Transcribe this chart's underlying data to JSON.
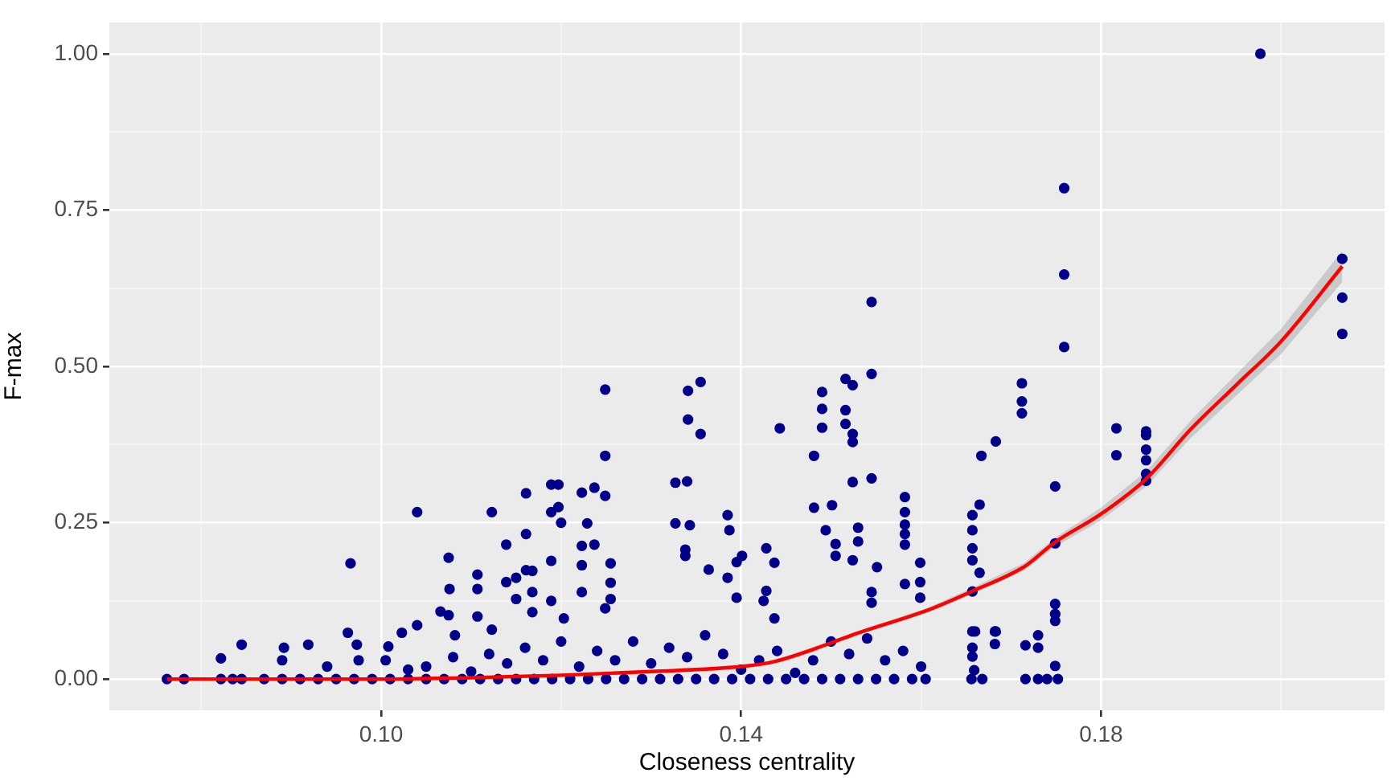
{
  "chart_data": {
    "type": "scatter",
    "xlabel": "Closeness centrality",
    "ylabel": "F-max",
    "xlim": [
      0.0698,
      0.2115
    ],
    "ylim": [
      -0.05,
      1.05
    ],
    "xticks": [
      {
        "value": 0.08,
        "label": null
      },
      {
        "value": 0.1,
        "label": "0.10"
      },
      {
        "value": 0.12,
        "label": null
      },
      {
        "value": 0.14,
        "label": "0.14"
      },
      {
        "value": 0.16,
        "label": null
      },
      {
        "value": 0.18,
        "label": "0.18"
      },
      {
        "value": 0.2,
        "label": null
      }
    ],
    "yticks": [
      {
        "value": 0,
        "label": "0.00"
      },
      {
        "value": 0.125,
        "label": null
      },
      {
        "value": 0.25,
        "label": "0.25"
      },
      {
        "value": 0.375,
        "label": null
      },
      {
        "value": 0.5,
        "label": "0.50"
      },
      {
        "value": 0.625,
        "label": null
      },
      {
        "value": 0.75,
        "label": "0.75"
      },
      {
        "value": 0.875,
        "label": null
      },
      {
        "value": 1,
        "label": "1.00"
      }
    ],
    "grid": true,
    "legend": false,
    "series": [
      {
        "marker": "circle",
        "color": "#00008b",
        "x": [
          0.0762,
          0.0781,
          0.0822,
          0.0835,
          0.0845,
          0.087,
          0.089,
          0.091,
          0.093,
          0.095,
          0.097,
          0.099,
          0.101,
          0.103,
          0.105,
          0.107,
          0.109,
          0.111,
          0.113,
          0.115,
          0.117,
          0.119,
          0.121,
          0.123,
          0.125,
          0.127,
          0.129,
          0.131,
          0.133,
          0.135,
          0.137,
          0.139,
          0.141,
          0.143,
          0.145,
          0.147,
          0.149,
          0.151,
          0.153,
          0.155,
          0.157,
          0.159,
          0.1605,
          0.1656,
          0.1668,
          0.1716,
          0.173,
          0.174,
          0.1752,
          0.105,
          0.108,
          0.11,
          0.112,
          0.114,
          0.116,
          0.118,
          0.12,
          0.122,
          0.124,
          0.126,
          0.128,
          0.13,
          0.132,
          0.134,
          0.136,
          0.138,
          0.14,
          0.142,
          0.144,
          0.146,
          0.148,
          0.15,
          0.152,
          0.154,
          0.156,
          0.158,
          0.16,
          0.1005,
          0.103,
          0.0822,
          0.0845,
          0.089,
          0.0892,
          0.0919,
          0.094,
          0.0966,
          0.0963,
          0.0973,
          0.0975,
          0.1008,
          0.1023,
          0.104,
          0.104,
          0.1066,
          0.1075,
          0.1076,
          0.1075,
          0.1082,
          0.1107,
          0.1107,
          0.1107,
          0.1123,
          0.1123,
          0.1139,
          0.1139,
          0.115,
          0.115,
          0.1161,
          0.1161,
          0.1161,
          0.1168,
          0.1168,
          0.1168,
          0.1189,
          0.1197,
          0.1189,
          0.1197,
          0.12,
          0.1189,
          0.1189,
          0.1203,
          0.1223,
          0.1229,
          0.1223,
          0.1223,
          0.1223,
          0.1237,
          0.1237,
          0.1249,
          0.1249,
          0.1249,
          0.1255,
          0.1255,
          0.1255,
          0.1249,
          0.1327,
          0.134,
          0.1327,
          0.1343,
          0.1341,
          0.1355,
          0.1341,
          0.1355,
          0.1338,
          0.1338,
          0.1364,
          0.1385,
          0.1387,
          0.1385,
          0.1395,
          0.1401,
          0.1395,
          0.1428,
          0.1428,
          0.1425,
          0.1437,
          0.1437,
          0.1443,
          0.1481,
          0.1481,
          0.149,
          0.149,
          0.149,
          0.1494,
          0.1501,
          0.1505,
          0.1505,
          0.1516,
          0.1516,
          0.1516,
          0.1524,
          0.1524,
          0.1524,
          0.1524,
          0.153,
          0.153,
          0.1524,
          0.1545,
          0.1545,
          0.1545,
          0.1551,
          0.1545,
          0.1545,
          0.1582,
          0.1582,
          0.1582,
          0.1582,
          0.1582,
          0.1599,
          0.1582,
          0.1599,
          0.1599,
          0.1657,
          0.1657,
          0.1657,
          0.1657,
          0.1665,
          0.1667,
          0.1683,
          0.1665,
          0.1657,
          0.1683,
          0.1712,
          0.1712,
          0.1712,
          0.1977,
          0.1759,
          0.1759,
          0.1759,
          0.1817,
          0.1817,
          0.185,
          0.185,
          0.185,
          0.185,
          0.185,
          0.185,
          0.2068,
          0.2068,
          0.2068,
          0.1657,
          0.1657,
          0.1657,
          0.1659,
          0.1682,
          0.1682,
          0.1716,
          0.173,
          0.173,
          0.166,
          0.1749,
          0.1749,
          0.1749,
          0.1749,
          0.1749,
          0.1749
        ],
        "values": [
          0,
          0,
          0,
          0,
          0,
          0,
          0,
          0,
          0,
          0,
          0,
          0,
          0,
          0,
          0,
          0,
          0,
          0,
          0,
          0,
          0,
          0,
          0,
          0,
          0,
          0,
          0,
          0,
          0,
          0,
          0,
          0,
          0,
          0,
          0,
          0,
          0,
          0,
          0,
          0,
          0,
          0,
          0,
          0,
          0,
          0,
          0,
          0,
          0,
          0.02,
          0.035,
          0.012,
          0.04,
          0.025,
          0.05,
          0.03,
          0.06,
          0.02,
          0.045,
          0.03,
          0.06,
          0.025,
          0.05,
          0.035,
          0.07,
          0.04,
          0.015,
          0.03,
          0.045,
          0.01,
          0.03,
          0.06,
          0.04,
          0.065,
          0.03,
          0.045,
          0.02,
          0.03,
          0.015,
          0.033,
          0.055,
          0.03,
          0.05,
          0.055,
          0.02,
          0.185,
          0.074,
          0.055,
          0.03,
          0.052,
          0.074,
          0.267,
          0.086,
          0.108,
          0.194,
          0.144,
          0.102,
          0.07,
          0.167,
          0.144,
          0.1,
          0.267,
          0.079,
          0.215,
          0.155,
          0.162,
          0.128,
          0.297,
          0.232,
          0.174,
          0.173,
          0.139,
          0.107,
          0.311,
          0.311,
          0.267,
          0.275,
          0.25,
          0.189,
          0.125,
          0.097,
          0.298,
          0.249,
          0.213,
          0.182,
          0.139,
          0.306,
          0.215,
          0.463,
          0.357,
          0.293,
          0.185,
          0.154,
          0.128,
          0.113,
          0.314,
          0.316,
          0.249,
          0.246,
          0.461,
          0.475,
          0.415,
          0.392,
          0.207,
          0.197,
          0.175,
          0.262,
          0.238,
          0.162,
          0.187,
          0.197,
          0.13,
          0.209,
          0.141,
          0.125,
          0.186,
          0.097,
          0.401,
          0.357,
          0.274,
          0.459,
          0.432,
          0.402,
          0.238,
          0.278,
          0.216,
          0.197,
          0.48,
          0.43,
          0.408,
          0.47,
          0.392,
          0.379,
          0.315,
          0.242,
          0.22,
          0.19,
          0.488,
          0.321,
          0.603,
          0.179,
          0.139,
          0.122,
          0.291,
          0.267,
          0.247,
          0.232,
          0.215,
          0.186,
          0.152,
          0.155,
          0.13,
          0.262,
          0.238,
          0.209,
          0.19,
          0.279,
          0.357,
          0.38,
          0.17,
          0.076,
          0.076,
          0.473,
          0.444,
          0.425,
          1.0,
          0.785,
          0.647,
          0.531,
          0.401,
          0.358,
          0.396,
          0.39,
          0.367,
          0.35,
          0.328,
          0.317,
          0.672,
          0.61,
          0.552,
          0.14,
          0.05,
          0.036,
          0.014,
          0.076,
          0.056,
          0.054,
          0.07,
          0.05,
          0.076,
          0.308,
          0.217,
          0.12,
          0.104,
          0.093,
          0.021
        ]
      },
      {
        "type": "line",
        "marker": "none",
        "color": "#ff0000",
        "x": [
          0.0762,
          0.09,
          0.1,
          0.11,
          0.12,
          0.13,
          0.14,
          0.1437,
          0.1537,
          0.1607,
          0.1656,
          0.1715,
          0.1748,
          0.18,
          0.185,
          0.19,
          0.195,
          0.2,
          0.2068
        ],
        "values": [
          0,
          0,
          0,
          0.002,
          0.006,
          0.012,
          0.02,
          0.028,
          0.077,
          0.11,
          0.14,
          0.18,
          0.218,
          0.264,
          0.32,
          0.4,
          0.47,
          0.54,
          0.66
        ],
        "lower": [
          0,
          0,
          0,
          0.001,
          0.005,
          0.011,
          0.018,
          0.026,
          0.074,
          0.106,
          0.135,
          0.174,
          0.211,
          0.254,
          0.308,
          0.386,
          0.453,
          0.52,
          0.635
        ],
        "upper": [
          0.003,
          0.002,
          0.001,
          0.003,
          0.007,
          0.013,
          0.022,
          0.03,
          0.08,
          0.114,
          0.145,
          0.186,
          0.225,
          0.274,
          0.332,
          0.414,
          0.487,
          0.56,
          0.685
        ]
      }
    ]
  }
}
